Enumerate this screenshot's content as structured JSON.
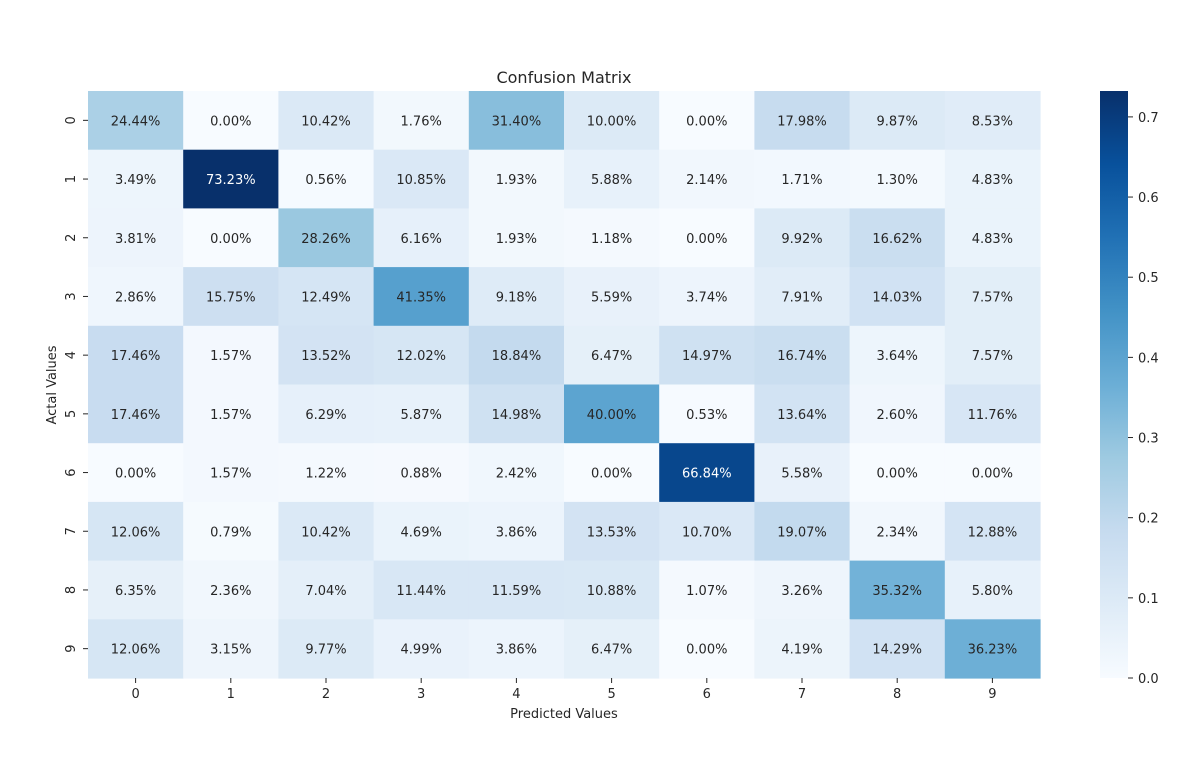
{
  "chart_data": {
    "type": "heatmap",
    "title": "Confusion Matrix",
    "xlabel": "Predicted Values",
    "ylabel": "Actal Values",
    "x_categories": [
      "0",
      "1",
      "2",
      "3",
      "4",
      "5",
      "6",
      "7",
      "8",
      "9"
    ],
    "y_categories": [
      "0",
      "1",
      "2",
      "3",
      "4",
      "5",
      "6",
      "7",
      "8",
      "9"
    ],
    "value_format": "percent_2dp",
    "values": [
      [
        0.2444,
        0.0,
        0.1042,
        0.0176,
        0.314,
        0.1,
        0.0,
        0.1798,
        0.0987,
        0.0853
      ],
      [
        0.0349,
        0.7323,
        0.0056,
        0.1085,
        0.0193,
        0.0588,
        0.0214,
        0.0171,
        0.013,
        0.0483
      ],
      [
        0.0381,
        0.0,
        0.2826,
        0.0616,
        0.0193,
        0.0118,
        0.0,
        0.0992,
        0.1662,
        0.0483
      ],
      [
        0.0286,
        0.1575,
        0.1249,
        0.4135,
        0.0918,
        0.0559,
        0.0374,
        0.0791,
        0.1403,
        0.0757
      ],
      [
        0.1746,
        0.0157,
        0.1352,
        0.1202,
        0.1884,
        0.0647,
        0.1497,
        0.1674,
        0.0364,
        0.0757
      ],
      [
        0.1746,
        0.0157,
        0.0629,
        0.0587,
        0.1498,
        0.4,
        0.0053,
        0.1364,
        0.026,
        0.1176
      ],
      [
        0.0,
        0.0157,
        0.0122,
        0.0088,
        0.0242,
        0.0,
        0.6684,
        0.0558,
        0.0,
        0.0
      ],
      [
        0.1206,
        0.0079,
        0.1042,
        0.0469,
        0.0386,
        0.1353,
        0.107,
        0.1907,
        0.0234,
        0.1288
      ],
      [
        0.0635,
        0.0236,
        0.0704,
        0.1144,
        0.1159,
        0.1088,
        0.0107,
        0.0326,
        0.3532,
        0.058
      ],
      [
        0.1206,
        0.0315,
        0.0977,
        0.0499,
        0.0386,
        0.0647,
        0.0,
        0.0419,
        0.1429,
        0.3623
      ]
    ],
    "value_labels": [
      [
        "24.44%",
        "0.00%",
        "10.42%",
        "1.76%",
        "31.40%",
        "10.00%",
        "0.00%",
        "17.98%",
        "9.87%",
        "8.53%"
      ],
      [
        "3.49%",
        "73.23%",
        "0.56%",
        "10.85%",
        "1.93%",
        "5.88%",
        "2.14%",
        "1.71%",
        "1.30%",
        "4.83%"
      ],
      [
        "3.81%",
        "0.00%",
        "28.26%",
        "6.16%",
        "1.93%",
        "1.18%",
        "0.00%",
        "9.92%",
        "16.62%",
        "4.83%"
      ],
      [
        "2.86%",
        "15.75%",
        "12.49%",
        "41.35%",
        "9.18%",
        "5.59%",
        "3.74%",
        "7.91%",
        "14.03%",
        "7.57%"
      ],
      [
        "17.46%",
        "1.57%",
        "13.52%",
        "12.02%",
        "18.84%",
        "6.47%",
        "14.97%",
        "16.74%",
        "3.64%",
        "7.57%"
      ],
      [
        "17.46%",
        "1.57%",
        "6.29%",
        "5.87%",
        "14.98%",
        "40.00%",
        "0.53%",
        "13.64%",
        "2.60%",
        "11.76%"
      ],
      [
        "0.00%",
        "1.57%",
        "1.22%",
        "0.88%",
        "2.42%",
        "0.00%",
        "66.84%",
        "5.58%",
        "0.00%",
        "0.00%"
      ],
      [
        "12.06%",
        "0.79%",
        "10.42%",
        "4.69%",
        "3.86%",
        "13.53%",
        "10.70%",
        "19.07%",
        "2.34%",
        "12.88%"
      ],
      [
        "6.35%",
        "2.36%",
        "7.04%",
        "11.44%",
        "11.59%",
        "10.88%",
        "1.07%",
        "3.26%",
        "35.32%",
        "5.80%"
      ],
      [
        "12.06%",
        "3.15%",
        "9.77%",
        "4.99%",
        "3.86%",
        "6.47%",
        "0.00%",
        "4.19%",
        "14.29%",
        "36.23%"
      ]
    ],
    "colorbar": {
      "min": 0.0,
      "max": 0.7323,
      "ticks": [
        0.0,
        0.1,
        0.2,
        0.3,
        0.4,
        0.5,
        0.6,
        0.7
      ],
      "tick_labels": [
        "0.0",
        "0.1",
        "0.2",
        "0.3",
        "0.4",
        "0.5",
        "0.6",
        "0.7"
      ]
    },
    "colormap": "Blues",
    "colormap_stops": [
      "#f7fbff",
      "#deebf7",
      "#c6dbef",
      "#9ecae1",
      "#6baed6",
      "#4292c6",
      "#2171b5",
      "#08519c",
      "#08306b"
    ],
    "grid": false,
    "legend": "colorbar-right"
  }
}
